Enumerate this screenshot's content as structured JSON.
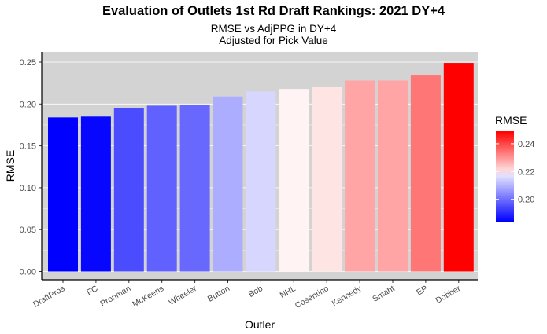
{
  "chart_data": {
    "type": "bar",
    "title": "Evaluation of Outlets 1st Rd Draft Rankings: 2021 DY+4",
    "subtitle": [
      "RMSE vs AdjPPG in DY+4",
      "Adjusted for Pick Value"
    ],
    "xlabel": "Outler",
    "ylabel": "RMSE",
    "categories": [
      "DraftPros",
      "FC",
      "Pronman",
      "McKeens",
      "Wheeler",
      "Button",
      "Bob",
      "NHL",
      "Cosentino",
      "Kennedy",
      "Smaht",
      "EP",
      "Dobber"
    ],
    "values": [
      0.184,
      0.185,
      0.195,
      0.198,
      0.199,
      0.209,
      0.215,
      0.218,
      0.22,
      0.228,
      0.228,
      0.234,
      0.249
    ],
    "ylim": [
      0,
      0.26
    ],
    "yticks": [
      "0.00",
      "0.05",
      "0.10",
      "0.15",
      "0.20",
      "0.25"
    ],
    "grid": true,
    "legend": {
      "title": "RMSE",
      "position": "right",
      "ticks": [
        "0.20",
        "0.22",
        "0.24"
      ],
      "range": [
        0.184,
        0.249
      ],
      "colors": {
        "low": "#0000ff",
        "mid": "#ffffff",
        "high": "#ff0000"
      }
    },
    "panel_background": "#d3d3d3"
  }
}
